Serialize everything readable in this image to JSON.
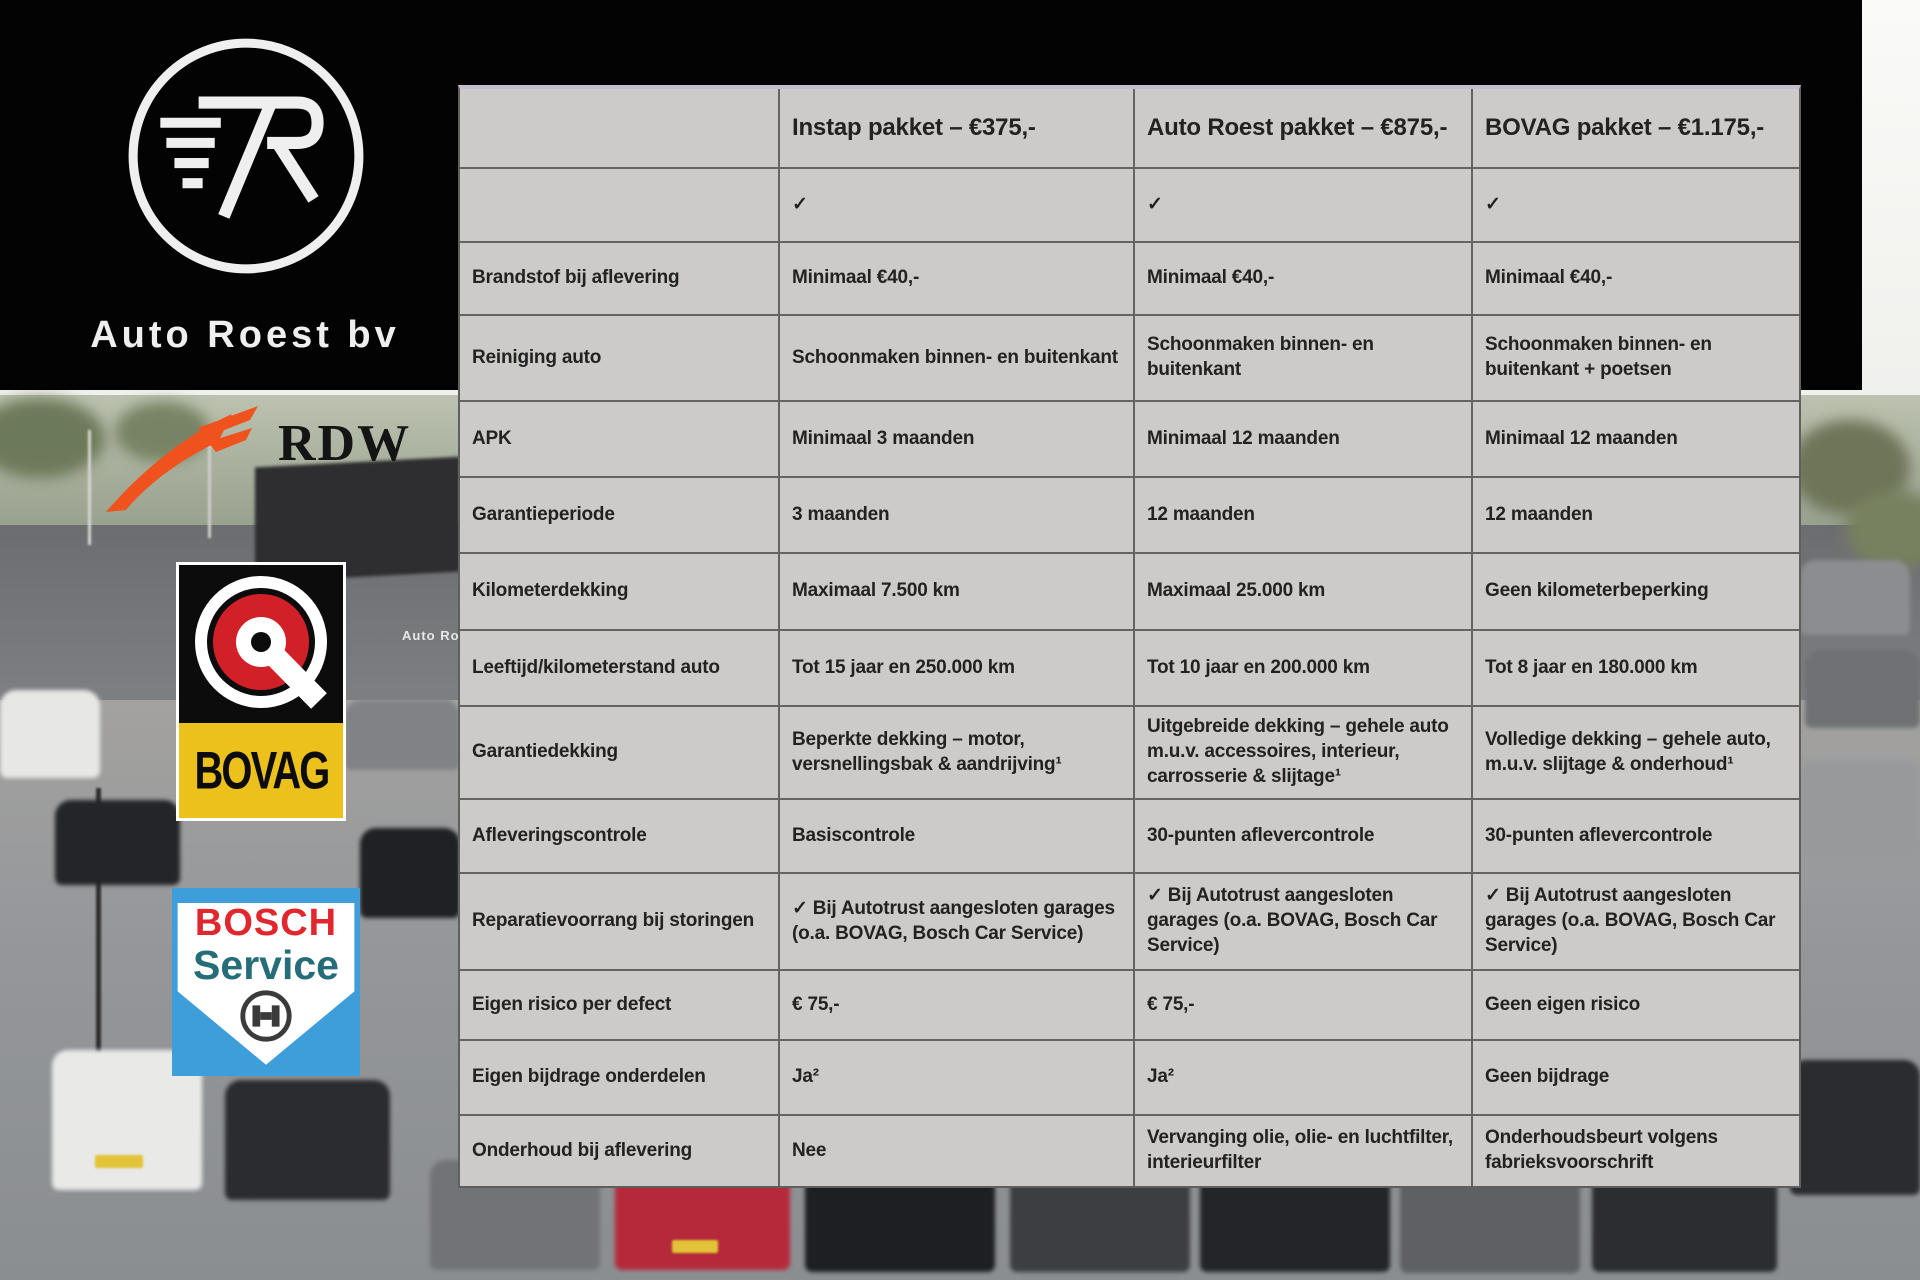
{
  "branding": {
    "company": "Auto Roest bv"
  },
  "logos": {
    "rdw": {
      "label": "RDW"
    },
    "bovag": {
      "label": "BOVAG"
    },
    "bosch": {
      "brand": "BOSCH",
      "sub": "Service"
    }
  },
  "photo": {
    "building_sign": "Auto Ro"
  },
  "table": {
    "columns": [
      "",
      "Instap pakket – €375,-",
      "Auto Roest pakket – €875,-",
      "BOVAG pakket – €1.175,-"
    ],
    "rows": [
      {
        "label": "",
        "values": [
          "✓",
          "✓",
          "✓"
        ]
      },
      {
        "label": "Brandstof bij aflevering",
        "values": [
          "Minimaal €40,-",
          "Minimaal €40,-",
          "Minimaal €40,-"
        ]
      },
      {
        "label": "Reiniging auto",
        "values": [
          "Schoonmaken binnen- en buitenkant",
          "Schoonmaken binnen- en buitenkant",
          "Schoonmaken binnen- en buitenkant + poetsen"
        ]
      },
      {
        "label": "APK",
        "values": [
          "Minimaal 3 maanden",
          "Minimaal 12 maanden",
          "Minimaal 12 maanden"
        ]
      },
      {
        "label": "Garantieperiode",
        "values": [
          "3 maanden",
          "12 maanden",
          "12 maanden"
        ]
      },
      {
        "label": "Kilometerdekking",
        "values": [
          "Maximaal 7.500 km",
          "Maximaal 25.000 km",
          "Geen kilometerbeperking"
        ]
      },
      {
        "label": "Leeftijd/kilometerstand auto",
        "values": [
          "Tot 15 jaar en 250.000 km",
          "Tot 10 jaar en 200.000 km",
          "Tot 8 jaar en 180.000 km"
        ]
      },
      {
        "label": "Garantiedekking",
        "values": [
          "Beperkte dekking – motor, versnellingsbak & aandrijving¹",
          "Uitgebreide dekking – gehele auto m.u.v. accessoires, interieur, carrosserie & slijtage¹",
          "Volledige dekking – gehele auto, m.u.v. slijtage & onderhoud¹"
        ]
      },
      {
        "label": "Afleveringscontrole",
        "values": [
          "Basiscontrole",
          "30-punten aflevercontrole",
          "30-punten aflevercontrole"
        ]
      },
      {
        "label": "Reparatievoorrang bij storingen",
        "values": [
          "✓ Bij Autotrust aangesloten garages (o.a. BOVAG, Bosch Car Service)",
          "✓ Bij Autotrust aangesloten garages (o.a. BOVAG, Bosch Car Service)",
          "✓ Bij Autotrust aangesloten garages (o.a. BOVAG, Bosch Car Service)"
        ]
      },
      {
        "label": "Eigen risico per defect",
        "values": [
          "€ 75,-",
          "€ 75,-",
          "Geen eigen risico"
        ]
      },
      {
        "label": "Eigen bijdrage onderdelen",
        "values": [
          "Ja²",
          "Ja²",
          "Geen bijdrage"
        ]
      },
      {
        "label": "Onderhoud bij aflevering",
        "values": [
          "Nee",
          "Vervanging olie, olie- en luchtfilter, interieurfilter",
          "Onderhoudsbeurt volgens fabrieksvoorschrift"
        ]
      }
    ]
  },
  "colors": {
    "band_black": "#030303",
    "table_bg": "#cccbc9",
    "table_border": "#646462",
    "table_top_edge": "#c6bdcb",
    "text_dark": "#222222",
    "rdw_orange": "#f0521d",
    "bovag_red": "#d12028",
    "bovag_yellow": "#edc11c",
    "bosch_blue": "#3d9ed9",
    "bosch_red": "#e1262d",
    "bosch_teal": "#256d78",
    "logo_white": "#efefef"
  }
}
